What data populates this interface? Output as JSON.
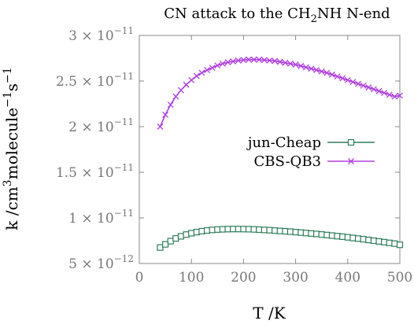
{
  "chart_data": {
    "type": "line",
    "title_prefix": "CN attack to the CH",
    "title_sub": "2",
    "title_suffix": "NH N-end",
    "xlabel": "T /K",
    "ylabel_parts": [
      {
        "t": "k /cm",
        "s": "n"
      },
      {
        "t": "3",
        "s": "sup"
      },
      {
        "t": "molecule",
        "s": "n"
      },
      {
        "t": "−1",
        "s": "sup"
      },
      {
        "t": "s",
        "s": "n"
      },
      {
        "t": "−1",
        "s": "sup"
      }
    ],
    "xlim": [
      0,
      500
    ],
    "ylim": [
      5e-12,
      3e-11
    ],
    "xticks": [
      {
        "v": 0,
        "label": "0"
      },
      {
        "v": 100,
        "label": "100"
      },
      {
        "v": 200,
        "label": "200"
      },
      {
        "v": 300,
        "label": "300"
      },
      {
        "v": 400,
        "label": "400"
      },
      {
        "v": 500,
        "label": "500"
      }
    ],
    "yticks": [
      {
        "v": 5e-12,
        "mant": "5",
        "exp": "−12"
      },
      {
        "v": 1e-11,
        "mant": "1",
        "exp": "−11"
      },
      {
        "v": 1.5e-11,
        "mant": "1.5",
        "exp": "−11"
      },
      {
        "v": 2e-11,
        "mant": "2",
        "exp": "−11"
      },
      {
        "v": 2.5e-11,
        "mant": "2.5",
        "exp": "−11"
      },
      {
        "v": 3e-11,
        "mant": "3",
        "exp": "−11"
      }
    ],
    "legend_position": "middle-right",
    "series": [
      {
        "name": "jun-Cheap",
        "color": "#2e7d5b",
        "marker": "square",
        "x": [
          40,
          50,
          60,
          70,
          80,
          90,
          100,
          110,
          120,
          130,
          140,
          150,
          160,
          170,
          180,
          190,
          200,
          210,
          220,
          230,
          240,
          250,
          260,
          270,
          280,
          290,
          300,
          310,
          320,
          330,
          340,
          350,
          360,
          370,
          380,
          390,
          400,
          410,
          420,
          430,
          440,
          450,
          460,
          470,
          480,
          490,
          500
        ],
        "values": [
          6.75e-12,
          7.1e-12,
          7.45e-12,
          7.75e-12,
          7.98e-12,
          8.17e-12,
          8.32e-12,
          8.44e-12,
          8.54e-12,
          8.62e-12,
          8.68e-12,
          8.72e-12,
          8.75e-12,
          8.77e-12,
          8.78e-12,
          8.78e-12,
          8.77e-12,
          8.76e-12,
          8.74e-12,
          8.71e-12,
          8.68e-12,
          8.65e-12,
          8.61e-12,
          8.57e-12,
          8.53e-12,
          8.49e-12,
          8.44e-12,
          8.39e-12,
          8.34e-12,
          8.29e-12,
          8.24e-12,
          8.18e-12,
          8.12e-12,
          8.06e-12,
          8e-12,
          7.94e-12,
          7.87e-12,
          7.8e-12,
          7.73e-12,
          7.66e-12,
          7.58e-12,
          7.5e-12,
          7.42e-12,
          7.34e-12,
          7.26e-12,
          7.18e-12,
          7.05e-12
        ]
      },
      {
        "name": "CBS-QB3",
        "color": "#b040e0",
        "marker": "x",
        "x": [
          40,
          50,
          60,
          70,
          80,
          90,
          100,
          110,
          120,
          130,
          140,
          150,
          160,
          170,
          180,
          190,
          200,
          210,
          220,
          230,
          240,
          250,
          260,
          270,
          280,
          290,
          300,
          310,
          320,
          330,
          340,
          350,
          360,
          370,
          380,
          390,
          400,
          410,
          420,
          430,
          440,
          450,
          460,
          470,
          480,
          490,
          500
        ],
        "values": [
          2e-11,
          2.13e-11,
          2.24e-11,
          2.33e-11,
          2.4e-11,
          2.46e-11,
          2.51e-11,
          2.555e-11,
          2.59e-11,
          2.62e-11,
          2.645e-11,
          2.67e-11,
          2.69e-11,
          2.705e-11,
          2.715e-11,
          2.725e-11,
          2.73e-11,
          2.735e-11,
          2.735e-11,
          2.735e-11,
          2.73e-11,
          2.725e-11,
          2.72e-11,
          2.71e-11,
          2.7e-11,
          2.69e-11,
          2.68e-11,
          2.665e-11,
          2.65e-11,
          2.635e-11,
          2.62e-11,
          2.605e-11,
          2.59e-11,
          2.57e-11,
          2.55e-11,
          2.53e-11,
          2.51e-11,
          2.49e-11,
          2.47e-11,
          2.45e-11,
          2.43e-11,
          2.41e-11,
          2.39e-11,
          2.37e-11,
          2.35e-11,
          2.33e-11,
          2.34e-11
        ]
      }
    ]
  }
}
